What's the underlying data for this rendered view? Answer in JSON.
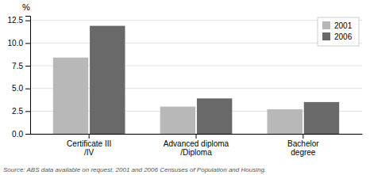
{
  "chart_data": {
    "type": "bar",
    "categories": [
      "Certificate III\n/IV",
      "Advanced diploma\n/Diploma",
      "Bachelor\ndegree"
    ],
    "series": [
      {
        "name": "2001",
        "color": "#b8b8b8",
        "values": [
          8.4,
          3.0,
          2.7
        ]
      },
      {
        "name": "2006",
        "color": "#696969",
        "values": [
          11.9,
          3.9,
          3.5
        ]
      }
    ],
    "ylabel": "%",
    "annotations": [
      "Source: ABS data available on request, 2001 and 2006 Censuses of Population and Housing."
    ],
    "ylim": [
      0,
      13
    ],
    "yticks": [
      {
        "value": 0,
        "label": "0.0"
      },
      2.5,
      {
        "value": 5.0,
        "label": "5.0"
      },
      7.5,
      {
        "value": 10.0,
        "label": "10.0"
      },
      12.5
    ],
    "grid": true,
    "legend": "upper right"
  }
}
